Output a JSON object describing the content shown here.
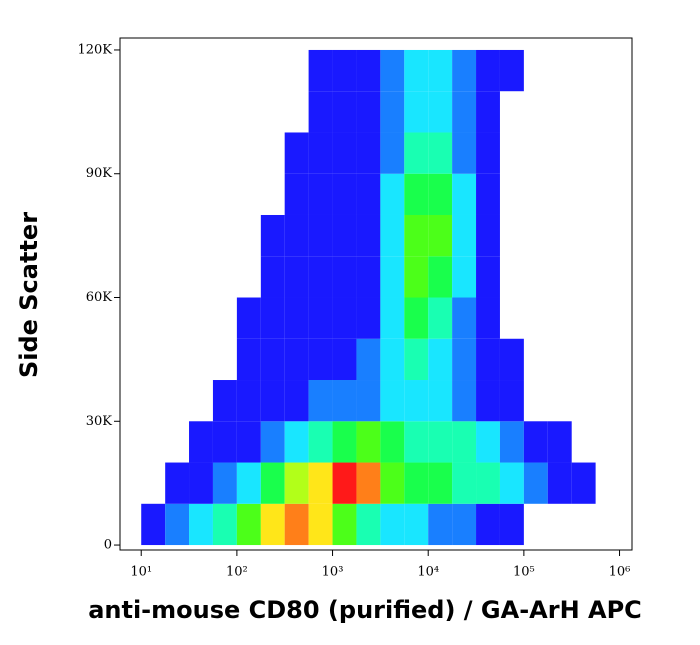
{
  "chart_data": {
    "type": "histogram2d",
    "x_label": "anti-mouse CD80 (purified) / GA-ArH APC",
    "y_label": "Side Scatter",
    "log_x": true,
    "xlim": [
      6,
      1350000
    ],
    "ylim": [
      -1200,
      122900
    ],
    "xticks": [
      {
        "value": 10,
        "label": "10¹"
      },
      {
        "value": 100,
        "label": "10²"
      },
      {
        "value": 1000,
        "label": "10³"
      },
      {
        "value": 10000,
        "label": "10⁴"
      },
      {
        "value": 100000,
        "label": "10⁵"
      },
      {
        "value": 1000000,
        "label": "10⁶"
      }
    ],
    "yticks": [
      0,
      {
        "value": 30000,
        "label": "30K"
      },
      {
        "value": 60000,
        "label": "60K"
      },
      {
        "value": 90000,
        "label": "90K"
      },
      {
        "value": 120000,
        "label": "120K"
      }
    ],
    "colormap": [
      "#0000ff",
      "#00ffff",
      "#00ff00",
      "#ffff00",
      "#ff0000"
    ],
    "xbins": [
      10,
      17.8,
      31.6,
      56.2,
      100,
      178,
      316,
      562,
      1000,
      1778,
      3162,
      5623,
      10000,
      17783,
      31623,
      56234,
      100000,
      177828,
      316228,
      562341,
      1000000
    ],
    "ybins": [
      0,
      10000,
      20000,
      30000,
      40000,
      50000,
      60000,
      70000,
      80000,
      90000,
      100000,
      110000,
      120000
    ],
    "counts": [
      [
        1,
        2,
        3,
        4,
        6,
        8,
        9,
        8,
        6,
        4,
        3,
        3,
        2,
        2,
        1,
        1,
        0,
        0,
        0,
        0
      ],
      [
        0,
        1,
        1,
        2,
        3,
        5,
        7,
        8,
        10,
        9,
        6,
        5,
        5,
        4,
        4,
        3,
        2,
        1,
        1,
        0
      ],
      [
        0,
        0,
        1,
        1,
        1,
        2,
        3,
        4,
        5,
        6,
        5,
        4,
        4,
        4,
        3,
        2,
        1,
        1,
        0,
        0
      ],
      [
        0,
        0,
        0,
        1,
        1,
        1,
        1,
        2,
        2,
        2,
        3,
        3,
        3,
        2,
        1,
        1,
        0,
        0,
        0,
        0
      ],
      [
        0,
        0,
        0,
        0,
        1,
        1,
        1,
        1,
        1,
        2,
        3,
        4,
        3,
        2,
        1,
        1,
        0,
        0,
        0,
        0
      ],
      [
        0,
        0,
        0,
        0,
        1,
        1,
        1,
        1,
        1,
        1,
        3,
        5,
        4,
        2,
        1,
        0,
        0,
        0,
        0,
        0
      ],
      [
        0,
        0,
        0,
        0,
        0,
        1,
        1,
        1,
        1,
        1,
        3,
        6,
        5,
        3,
        1,
        0,
        0,
        0,
        0,
        0
      ],
      [
        0,
        0,
        0,
        0,
        0,
        1,
        1,
        1,
        1,
        1,
        3,
        6,
        6,
        3,
        1,
        0,
        0,
        0,
        0,
        0
      ],
      [
        0,
        0,
        0,
        0,
        0,
        0,
        1,
        1,
        1,
        1,
        3,
        5,
        5,
        3,
        1,
        0,
        0,
        0,
        0,
        0
      ],
      [
        0,
        0,
        0,
        0,
        0,
        0,
        1,
        1,
        1,
        1,
        2,
        4,
        4,
        2,
        1,
        0,
        0,
        0,
        0,
        0
      ],
      [
        0,
        0,
        0,
        0,
        0,
        0,
        0,
        1,
        1,
        1,
        2,
        3,
        3,
        2,
        1,
        0,
        0,
        0,
        0,
        0
      ],
      [
        0,
        0,
        0,
        0,
        0,
        0,
        0,
        1,
        1,
        1,
        2,
        3,
        3,
        2,
        1,
        1,
        0,
        0,
        0,
        0
      ]
    ]
  }
}
